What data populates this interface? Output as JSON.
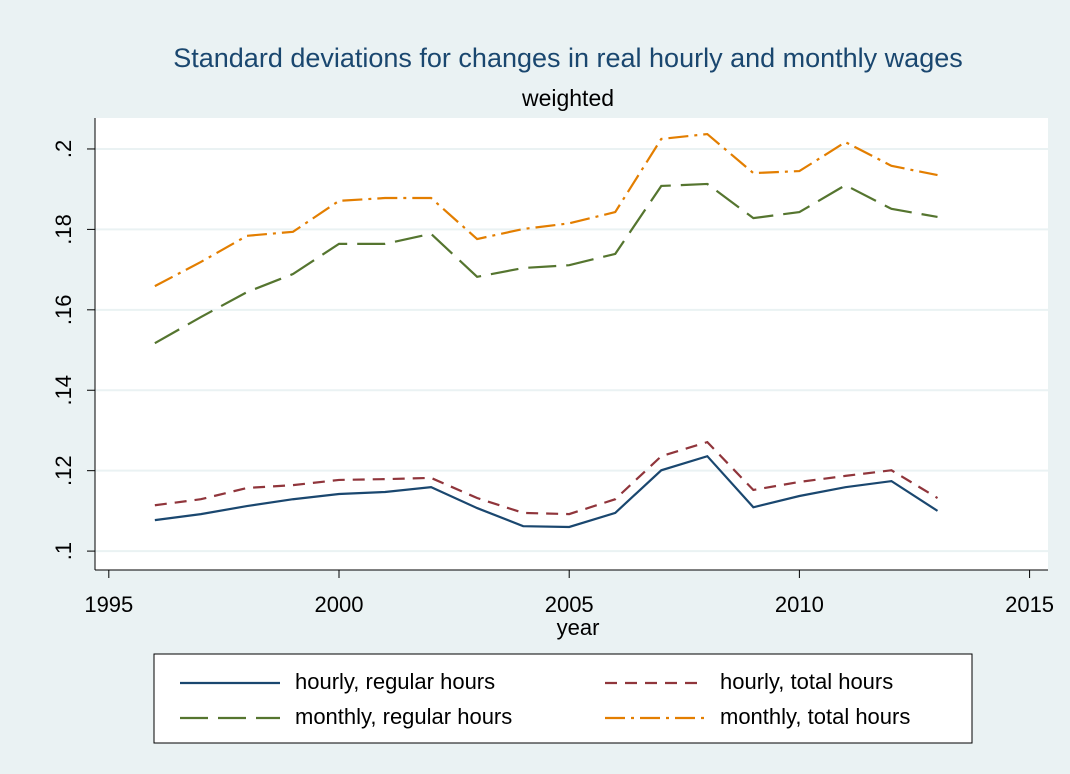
{
  "chart_data": {
    "type": "line",
    "title": "Standard deviations for changes in real hourly and monthly wages",
    "subtitle": "weighted",
    "x_label": "year",
    "x": [
      1996,
      1997,
      1998,
      1999,
      2000,
      2001,
      2002,
      2003,
      2004,
      2005,
      2006,
      2007,
      2008,
      2009,
      2010,
      2011,
      2012,
      2013
    ],
    "series": [
      {
        "name": "hourly, regular hours",
        "color": "#1a476f",
        "dash": "none",
        "values": [
          0.1077,
          0.1092,
          0.1112,
          0.1129,
          0.1142,
          0.1147,
          0.1159,
          0.1107,
          0.1062,
          0.106,
          0.1095,
          0.1201,
          0.1236,
          0.1109,
          0.1137,
          0.1159,
          0.1174,
          0.11
        ]
      },
      {
        "name": "hourly, total hours",
        "color": "#90353b",
        "dash": "12,8",
        "values": [
          0.1114,
          0.1129,
          0.1157,
          0.1164,
          0.1177,
          0.1179,
          0.1182,
          0.1132,
          0.1095,
          0.1092,
          0.1129,
          0.1236,
          0.1271,
          0.1152,
          0.1172,
          0.1187,
          0.1201,
          0.1132
        ]
      },
      {
        "name": "monthly, regular hours",
        "color": "#55752f",
        "dash": "28,10",
        "values": [
          0.1517,
          0.1582,
          0.1644,
          0.1689,
          0.1764,
          0.1764,
          0.1789,
          0.1682,
          0.1704,
          0.1711,
          0.1739,
          0.1908,
          0.1913,
          0.1828,
          0.1843,
          0.191,
          0.1851,
          0.1831
        ]
      },
      {
        "name": "monthly, total hours",
        "color": "#e37e00",
        "dash": "20,6,3,6",
        "values": [
          0.1659,
          0.1719,
          0.1784,
          0.1794,
          0.1871,
          0.1878,
          0.1878,
          0.1776,
          0.1801,
          0.1815,
          0.1843,
          0.2025,
          0.2037,
          0.194,
          0.1945,
          0.2017,
          0.1958,
          0.1935
        ]
      }
    ],
    "xlim": [
      1994.7,
      2015.4
    ],
    "xticks": [
      1995,
      2000,
      2005,
      2010,
      2015
    ],
    "ylim": [
      0.0953,
      0.2077
    ],
    "yticks": [
      {
        "value": 0.1,
        "label": ".1"
      },
      {
        "value": 0.12,
        "label": ".12"
      },
      {
        "value": 0.14,
        "label": ".14"
      },
      {
        "value": 0.16,
        "label": ".16"
      },
      {
        "value": 0.18,
        "label": ".18"
      },
      {
        "value": 0.2,
        "label": ".2"
      }
    ],
    "grid": true,
    "legend": "bottom"
  }
}
